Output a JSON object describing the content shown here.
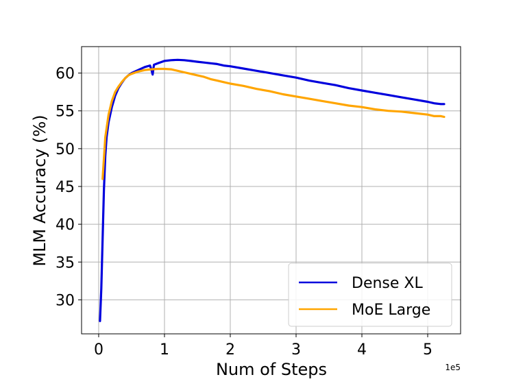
{
  "chart_data": {
    "type": "line",
    "title": "",
    "xlabel": "Num of Steps",
    "ylabel": "MLM Accuracy (%)",
    "x_offset_label": "1e5",
    "xlim": [
      -0.26,
      5.5
    ],
    "ylim": [
      25.5,
      63.5
    ],
    "x_ticks": [
      0,
      1,
      2,
      3,
      4,
      5
    ],
    "x_tick_labels": [
      "0",
      "1",
      "2",
      "3",
      "4",
      "5"
    ],
    "y_ticks": [
      30,
      35,
      40,
      45,
      50,
      55,
      60
    ],
    "y_tick_labels": [
      "30",
      "35",
      "40",
      "45",
      "50",
      "55",
      "60"
    ],
    "grid": true,
    "legend_position": "lower-right",
    "series": [
      {
        "name": "Dense XL",
        "color": "#0000dd",
        "points": [
          [
            0.02,
            27.2
          ],
          [
            0.04,
            31.5
          ],
          [
            0.06,
            38.0
          ],
          [
            0.08,
            44.5
          ],
          [
            0.1,
            49.0
          ],
          [
            0.12,
            51.5
          ],
          [
            0.15,
            53.5
          ],
          [
            0.2,
            55.5
          ],
          [
            0.25,
            57.0
          ],
          [
            0.3,
            58.0
          ],
          [
            0.35,
            58.7
          ],
          [
            0.4,
            59.3
          ],
          [
            0.45,
            59.7
          ],
          [
            0.5,
            60.0
          ],
          [
            0.6,
            60.4
          ],
          [
            0.7,
            60.8
          ],
          [
            0.78,
            61.0
          ],
          [
            0.8,
            60.5
          ],
          [
            0.82,
            59.8
          ],
          [
            0.84,
            61.1
          ],
          [
            0.9,
            61.3
          ],
          [
            1.0,
            61.6
          ],
          [
            1.1,
            61.7
          ],
          [
            1.2,
            61.75
          ],
          [
            1.3,
            61.7
          ],
          [
            1.4,
            61.6
          ],
          [
            1.5,
            61.5
          ],
          [
            1.6,
            61.4
          ],
          [
            1.7,
            61.3
          ],
          [
            1.8,
            61.2
          ],
          [
            1.9,
            61.0
          ],
          [
            2.0,
            60.9
          ],
          [
            2.2,
            60.6
          ],
          [
            2.4,
            60.3
          ],
          [
            2.6,
            60.0
          ],
          [
            2.8,
            59.7
          ],
          [
            3.0,
            59.4
          ],
          [
            3.2,
            59.0
          ],
          [
            3.4,
            58.7
          ],
          [
            3.6,
            58.4
          ],
          [
            3.8,
            58.0
          ],
          [
            4.0,
            57.7
          ],
          [
            4.2,
            57.4
          ],
          [
            4.4,
            57.1
          ],
          [
            4.6,
            56.8
          ],
          [
            4.8,
            56.5
          ],
          [
            5.0,
            56.2
          ],
          [
            5.1,
            56.0
          ],
          [
            5.2,
            55.9
          ],
          [
            5.25,
            55.9
          ]
        ]
      },
      {
        "name": "MoE Large",
        "color": "#ffa500",
        "points": [
          [
            0.06,
            46.0
          ],
          [
            0.1,
            51.5
          ],
          [
            0.15,
            54.5
          ],
          [
            0.2,
            56.3
          ],
          [
            0.25,
            57.5
          ],
          [
            0.3,
            58.2
          ],
          [
            0.35,
            58.8
          ],
          [
            0.4,
            59.3
          ],
          [
            0.45,
            59.7
          ],
          [
            0.5,
            59.9
          ],
          [
            0.6,
            60.2
          ],
          [
            0.7,
            60.4
          ],
          [
            0.8,
            60.5
          ],
          [
            0.9,
            60.55
          ],
          [
            1.0,
            60.55
          ],
          [
            1.1,
            60.5
          ],
          [
            1.2,
            60.3
          ],
          [
            1.3,
            60.1
          ],
          [
            1.4,
            59.9
          ],
          [
            1.5,
            59.7
          ],
          [
            1.6,
            59.5
          ],
          [
            1.7,
            59.2
          ],
          [
            1.8,
            59.0
          ],
          [
            1.9,
            58.8
          ],
          [
            2.0,
            58.6
          ],
          [
            2.2,
            58.3
          ],
          [
            2.4,
            57.9
          ],
          [
            2.6,
            57.6
          ],
          [
            2.8,
            57.2
          ],
          [
            3.0,
            56.9
          ],
          [
            3.2,
            56.6
          ],
          [
            3.4,
            56.3
          ],
          [
            3.6,
            56.0
          ],
          [
            3.8,
            55.7
          ],
          [
            4.0,
            55.5
          ],
          [
            4.2,
            55.2
          ],
          [
            4.4,
            55.0
          ],
          [
            4.6,
            54.9
          ],
          [
            4.8,
            54.7
          ],
          [
            5.0,
            54.5
          ],
          [
            5.1,
            54.3
          ],
          [
            5.2,
            54.3
          ],
          [
            5.25,
            54.2
          ]
        ]
      }
    ]
  }
}
